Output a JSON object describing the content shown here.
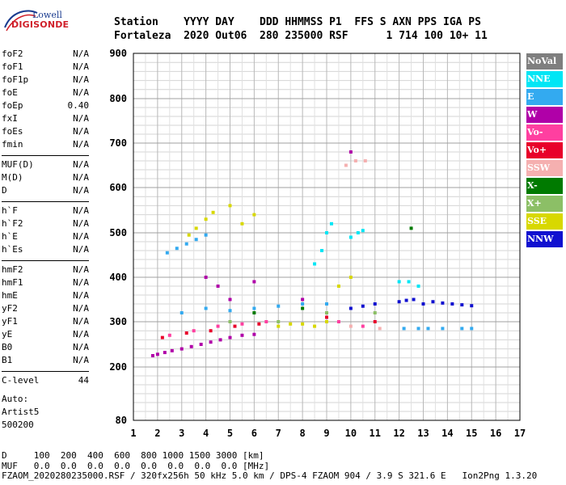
{
  "logo": {
    "line1": "Lowell",
    "line2": "DIGISONDE"
  },
  "header": {
    "labels": "Station    YYYY DAY    DDD HHMMSS P1  FFS S AXN PPS IGA PS",
    "values": "Fortaleza  2020 Out06  280 235000 RSF      1 714 100 10+ 11"
  },
  "params_group1": [
    {
      "name": "foF2",
      "value": "N/A"
    },
    {
      "name": "foF1",
      "value": "N/A"
    },
    {
      "name": "foF1p",
      "value": "N/A"
    },
    {
      "name": "foE",
      "value": "N/A"
    },
    {
      "name": "foEp",
      "value": "0.40"
    },
    {
      "name": "fxI",
      "value": "N/A"
    },
    {
      "name": "foEs",
      "value": "N/A"
    },
    {
      "name": "fmin",
      "value": "N/A"
    }
  ],
  "params_group2": [
    {
      "name": "MUF(D)",
      "value": "N/A"
    },
    {
      "name": "M(D)",
      "value": "N/A"
    },
    {
      "name": "D",
      "value": "N/A"
    }
  ],
  "params_group3": [
    {
      "name": "h`F",
      "value": "N/A"
    },
    {
      "name": "h`F2",
      "value": "N/A"
    },
    {
      "name": "h`E",
      "value": "N/A"
    },
    {
      "name": "h`Es",
      "value": "N/A"
    }
  ],
  "params_group4": [
    {
      "name": "hmF2",
      "value": "N/A"
    },
    {
      "name": "hmF1",
      "value": "N/A"
    },
    {
      "name": "hmE",
      "value": "N/A"
    },
    {
      "name": "yF2",
      "value": "N/A"
    },
    {
      "name": "yF1",
      "value": "N/A"
    },
    {
      "name": "yE",
      "value": "N/A"
    },
    {
      "name": "B0",
      "value": "N/A"
    },
    {
      "name": "B1",
      "value": "N/A"
    }
  ],
  "params_group5": [
    {
      "name": "C-level",
      "value": "44"
    }
  ],
  "auto": {
    "line1": "Auto:",
    "line2": "Artist5",
    "line3": "500200"
  },
  "legend": [
    {
      "label": "NoVal",
      "color": "#7f7f7f"
    },
    {
      "label": "NNE",
      "color": "#00e6f5"
    },
    {
      "label": "E",
      "color": "#33aaf0"
    },
    {
      "label": "W",
      "color": "#b000a8"
    },
    {
      "label": "Vo-",
      "color": "#ff3fa0"
    },
    {
      "label": "Vo+",
      "color": "#e8002a"
    },
    {
      "label": "SSW",
      "color": "#f5b0b0"
    },
    {
      "label": "X-",
      "color": "#007a00"
    },
    {
      "label": "X+",
      "color": "#8cbf66"
    },
    {
      "label": "SSE",
      "color": "#d8d800"
    },
    {
      "label": "NNW",
      "color": "#1010d0"
    }
  ],
  "footer": {
    "line1": "D     100  200  400  600  800 1000 1500 3000 [km]",
    "line2": "MUF   0.0  0.0  0.0  0.0  0.0  0.0  0.0  0.0 [MHz]",
    "line3": "FZAOM_2020280235000.RSF / 320fx256h 50 kHz 5.0 km / DPS-4 FZAOM 904 / 3.9 S 321.6 E   Ion2Png 1.3.20"
  },
  "chart_data": {
    "type": "scatter",
    "title": "",
    "xlabel": "",
    "ylabel": "",
    "xlim": [
      1,
      17
    ],
    "ylim": [
      80,
      900
    ],
    "x_ticks": [
      1,
      2,
      3,
      4,
      5,
      6,
      7,
      8,
      9,
      10,
      11,
      12,
      13,
      14,
      15,
      16,
      17
    ],
    "y_ticks": [
      80,
      200,
      300,
      400,
      500,
      600,
      700,
      800,
      900
    ],
    "grid": true,
    "series": [
      {
        "name": "W",
        "points": [
          [
            1.8,
            225
          ],
          [
            2.0,
            228
          ],
          [
            2.3,
            232
          ],
          [
            2.6,
            236
          ],
          [
            3.0,
            240
          ],
          [
            3.4,
            245
          ],
          [
            3.8,
            250
          ],
          [
            4.2,
            255
          ],
          [
            4.6,
            260
          ],
          [
            5.0,
            265
          ],
          [
            5.5,
            270
          ],
          [
            6.0,
            272
          ],
          [
            4.0,
            400
          ],
          [
            4.5,
            380
          ],
          [
            5.0,
            350
          ],
          [
            6.0,
            390
          ],
          [
            8.0,
            350
          ],
          [
            10.0,
            680
          ]
        ]
      },
      {
        "name": "E",
        "points": [
          [
            2.4,
            455
          ],
          [
            2.8,
            465
          ],
          [
            3.2,
            475
          ],
          [
            3.6,
            485
          ],
          [
            4.0,
            495
          ],
          [
            3.0,
            320
          ],
          [
            4.0,
            330
          ],
          [
            5.0,
            325
          ],
          [
            6.0,
            330
          ],
          [
            7.0,
            335
          ],
          [
            8.0,
            340
          ],
          [
            9.0,
            340
          ],
          [
            12.2,
            285
          ],
          [
            12.8,
            285
          ],
          [
            13.2,
            285
          ],
          [
            13.8,
            285
          ],
          [
            14.6,
            285
          ],
          [
            15.0,
            285
          ]
        ]
      },
      {
        "name": "NNE",
        "points": [
          [
            8.5,
            430
          ],
          [
            8.8,
            460
          ],
          [
            9.0,
            500
          ],
          [
            9.2,
            520
          ],
          [
            10.0,
            490
          ],
          [
            10.3,
            500
          ],
          [
            10.5,
            505
          ],
          [
            12.0,
            390
          ],
          [
            12.4,
            390
          ],
          [
            12.8,
            380
          ]
        ]
      },
      {
        "name": "SSE",
        "points": [
          [
            3.3,
            495
          ],
          [
            3.6,
            510
          ],
          [
            4.0,
            530
          ],
          [
            4.3,
            545
          ],
          [
            5.0,
            560
          ],
          [
            5.5,
            520
          ],
          [
            6.0,
            540
          ],
          [
            7.0,
            290
          ],
          [
            7.5,
            295
          ],
          [
            8.0,
            295
          ],
          [
            8.5,
            290
          ],
          [
            9.0,
            300
          ],
          [
            9.5,
            380
          ],
          [
            10.0,
            400
          ]
        ]
      },
      {
        "name": "NNW",
        "points": [
          [
            12.0,
            345
          ],
          [
            12.3,
            348
          ],
          [
            12.6,
            350
          ],
          [
            13.0,
            340
          ],
          [
            13.4,
            345
          ],
          [
            13.8,
            342
          ],
          [
            14.2,
            340
          ],
          [
            14.6,
            338
          ],
          [
            15.0,
            336
          ],
          [
            10.0,
            330
          ],
          [
            10.5,
            335
          ],
          [
            11.0,
            340
          ]
        ]
      },
      {
        "name": "Vo-",
        "points": [
          [
            2.5,
            270
          ],
          [
            3.5,
            280
          ],
          [
            4.5,
            290
          ],
          [
            5.5,
            295
          ],
          [
            6.5,
            300
          ],
          [
            9.5,
            300
          ],
          [
            10.5,
            290
          ]
        ]
      },
      {
        "name": "Vo+",
        "points": [
          [
            2.2,
            265
          ],
          [
            3.2,
            275
          ],
          [
            4.2,
            280
          ],
          [
            5.2,
            290
          ],
          [
            6.2,
            295
          ],
          [
            9.0,
            310
          ],
          [
            11.0,
            300
          ]
        ]
      },
      {
        "name": "SSW",
        "points": [
          [
            9.8,
            650
          ],
          [
            10.2,
            660
          ],
          [
            10.6,
            660
          ],
          [
            10.0,
            290
          ],
          [
            11.2,
            285
          ]
        ]
      },
      {
        "name": "X+",
        "points": [
          [
            5.0,
            300
          ],
          [
            7.0,
            300
          ],
          [
            9.0,
            320
          ],
          [
            11.0,
            320
          ]
        ]
      },
      {
        "name": "X-",
        "points": [
          [
            6.0,
            320
          ],
          [
            8.0,
            330
          ],
          [
            12.5,
            510
          ]
        ]
      }
    ]
  }
}
